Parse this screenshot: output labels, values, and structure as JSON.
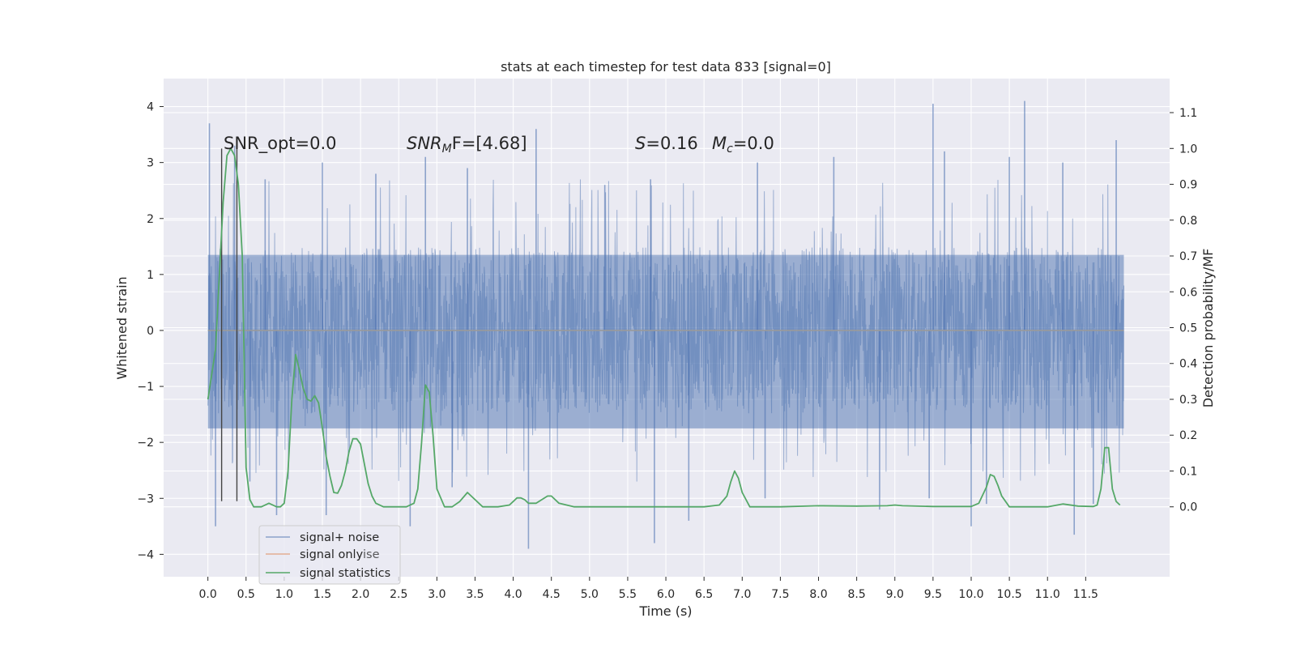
{
  "chart_data": {
    "type": "line",
    "title": "stats at each timestep for test data 833 [signal=0]",
    "xlabel": "Time (s)",
    "ylabel": "Whitened strain",
    "y2label": "Detection probability/MF",
    "xlim": [
      -0.58,
      12.6
    ],
    "ylim": [
      -4.4,
      4.5
    ],
    "y2lim": [
      -0.195,
      1.195
    ],
    "xticks": [
      "0.0",
      "0.5",
      "1.0",
      "1.5",
      "2.0",
      "2.5",
      "3.0",
      "3.5",
      "4.0",
      "4.5",
      "5.0",
      "5.5",
      "6.0",
      "6.5",
      "7.0",
      "7.5",
      "8.0",
      "8.5",
      "9.0",
      "9.5",
      "10.0",
      "10.5",
      "11.0",
      "11.5"
    ],
    "yticks": [
      "4",
      "3",
      "2",
      "1",
      "0",
      "−1",
      "−2",
      "−3",
      "−4"
    ],
    "y2ticks": [
      "1.1",
      "1.0",
      "0.9",
      "0.8",
      "0.7",
      "0.6",
      "0.5",
      "0.4",
      "0.3",
      "0.2",
      "0.1",
      "0.0"
    ],
    "grid": true,
    "legend_placement": "lower-left",
    "colors": {
      "background": "#eaeaf2",
      "grid": "#ffffff",
      "noise": "#4c72b0",
      "signal": "#dd8452",
      "stats": "#55a868",
      "marker": "#444444"
    },
    "annotations": {
      "snr_opt": "SNR_opt=0.0",
      "snr_mf_main": "SNR",
      "snr_mf_sub": "M",
      "snr_mf_rest": "F=[4.68]",
      "s_main": "S",
      "s_rest": "=0.16",
      "mc_main": "M",
      "mc_sub": "c",
      "mc_rest": "=0.0"
    },
    "legend": {
      "noise": "signal+ noise",
      "signal": "signal only",
      "stats": "signal statistics",
      "hidden_fragment": "ise"
    },
    "vertical_markers": [
      {
        "x": 0.18,
        "y_top": 3.25,
        "y_bottom": -3.05
      },
      {
        "x": 0.38,
        "y_top": 3.25,
        "y_bottom": -3.05
      }
    ],
    "noise_series": {
      "name": "signal+ noise",
      "t_start": 0.0,
      "t_end": 12.0,
      "band": [
        -1.85,
        1.75
      ],
      "spikes": [
        {
          "t": 0.02,
          "v": 3.7
        },
        {
          "t": 0.1,
          "v": -3.5
        },
        {
          "t": 0.35,
          "v": 3.3
        },
        {
          "t": 0.55,
          "v": -2.7
        },
        {
          "t": 0.75,
          "v": 2.7
        },
        {
          "t": 0.9,
          "v": -3.3
        },
        {
          "t": 1.5,
          "v": 3.0
        },
        {
          "t": 1.55,
          "v": -3.3
        },
        {
          "t": 2.2,
          "v": 2.8
        },
        {
          "t": 2.85,
          "v": 3.1
        },
        {
          "t": 2.65,
          "v": -3.5
        },
        {
          "t": 3.2,
          "v": -2.8
        },
        {
          "t": 3.4,
          "v": 2.9
        },
        {
          "t": 4.3,
          "v": 3.6
        },
        {
          "t": 4.2,
          "v": -3.9
        },
        {
          "t": 5.2,
          "v": 2.6
        },
        {
          "t": 5.8,
          "v": 2.7
        },
        {
          "t": 5.85,
          "v": -3.8
        },
        {
          "t": 6.3,
          "v": -3.4
        },
        {
          "t": 7.2,
          "v": 3.0
        },
        {
          "t": 7.3,
          "v": -3.0
        },
        {
          "t": 8.2,
          "v": 3.1
        },
        {
          "t": 8.8,
          "v": -3.2
        },
        {
          "t": 9.5,
          "v": 4.05
        },
        {
          "t": 9.45,
          "v": -3.0
        },
        {
          "t": 9.65,
          "v": 3.2
        },
        {
          "t": 10.0,
          "v": -3.5
        },
        {
          "t": 10.5,
          "v": 3.1
        },
        {
          "t": 10.7,
          "v": 4.1
        },
        {
          "t": 10.2,
          "v": -3.1
        },
        {
          "t": 11.2,
          "v": 3.0
        },
        {
          "t": 11.35,
          "v": -3.65
        },
        {
          "t": 11.6,
          "v": -3.1
        },
        {
          "t": 11.9,
          "v": 3.4
        }
      ]
    },
    "signal_series": {
      "name": "signal only",
      "x": [
        0.0,
        12.0
      ],
      "y": [
        0.0,
        0.0
      ]
    },
    "stats_series": {
      "name": "signal statistics",
      "x": [
        0.0,
        0.1,
        0.2,
        0.25,
        0.3,
        0.35,
        0.4,
        0.45,
        0.5,
        0.55,
        0.6,
        0.65,
        0.7,
        0.8,
        0.9,
        0.95,
        1.0,
        1.05,
        1.1,
        1.15,
        1.2,
        1.25,
        1.3,
        1.35,
        1.4,
        1.45,
        1.5,
        1.55,
        1.6,
        1.65,
        1.7,
        1.75,
        1.8,
        1.85,
        1.9,
        1.95,
        2.0,
        2.05,
        2.1,
        2.15,
        2.2,
        2.3,
        2.4,
        2.5,
        2.6,
        2.7,
        2.75,
        2.8,
        2.85,
        2.9,
        2.95,
        3.0,
        3.05,
        3.1,
        3.15,
        3.2,
        3.3,
        3.4,
        3.5,
        3.6,
        3.8,
        3.95,
        4.05,
        4.1,
        4.15,
        4.2,
        4.3,
        4.45,
        4.5,
        4.6,
        4.8,
        5.0,
        5.5,
        6.0,
        6.5,
        6.7,
        6.8,
        6.85,
        6.9,
        6.95,
        7.0,
        7.1,
        7.5,
        8.0,
        8.5,
        8.9,
        9.0,
        9.1,
        9.5,
        10.0,
        10.1,
        10.2,
        10.25,
        10.3,
        10.35,
        10.4,
        10.5,
        10.8,
        11.0,
        11.2,
        11.4,
        11.6,
        11.65,
        11.7,
        11.75,
        11.8,
        11.85,
        11.9,
        11.95
      ],
      "y": [
        0.3,
        0.44,
        0.85,
        0.98,
        1.0,
        0.98,
        0.9,
        0.7,
        0.11,
        0.02,
        0.0,
        0.0,
        0.0,
        0.01,
        0.0,
        0.0,
        0.01,
        0.1,
        0.3,
        0.425,
        0.38,
        0.33,
        0.3,
        0.295,
        0.31,
        0.29,
        0.22,
        0.14,
        0.085,
        0.04,
        0.038,
        0.06,
        0.1,
        0.155,
        0.19,
        0.19,
        0.175,
        0.12,
        0.065,
        0.03,
        0.01,
        0.0,
        0.0,
        0.0,
        0.0,
        0.01,
        0.05,
        0.18,
        0.34,
        0.32,
        0.2,
        0.05,
        0.025,
        0.0,
        0.0,
        0.0,
        0.015,
        0.04,
        0.02,
        0.0,
        0.0,
        0.005,
        0.025,
        0.025,
        0.02,
        0.01,
        0.01,
        0.03,
        0.03,
        0.01,
        0.0,
        0.0,
        0.0,
        0.0,
        0.0,
        0.005,
        0.03,
        0.07,
        0.1,
        0.08,
        0.04,
        0.0,
        0.0,
        0.003,
        0.002,
        0.003,
        0.005,
        0.003,
        0.001,
        0.001,
        0.01,
        0.055,
        0.09,
        0.085,
        0.06,
        0.03,
        0.0,
        0.0,
        0.0,
        0.008,
        0.002,
        0.001,
        0.005,
        0.05,
        0.165,
        0.165,
        0.05,
        0.015,
        0.005
      ]
    }
  }
}
